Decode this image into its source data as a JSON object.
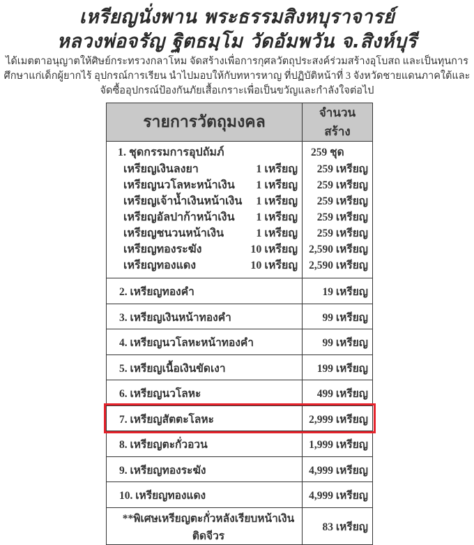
{
  "title_line1": "เหรียญนั่งพาน  พระธรรมสิงหบุราจารย์",
  "title_line2": "หลวงพ่อจรัญ  ฐิตธมฺโม  วัดอัมพวัน  จ.สิงห์บุรี",
  "intro": "ได้เมตตาอนุญาตให้ศิษย์กระทรวงกลาโหม จัดสร้างเพื่อการกุศลวัตถุประสงค์ร่วมสร้างอุโบสถ และเป็นทุนการศึกษาแก่เด็กผู้ยากไร้ อุปกรณ์การเรียน นำไปมอบให้กับทหารหาญ ที่ปฏิบัติหน้าที่ 3 จังหวัดชายแดนภาคใต้และจัดซื้ออุปกรณ์ป้องกันภัยเสื้อเกราะเพื่อเป็นขวัญและกำลังใจต่อไป",
  "table": {
    "headers": [
      "รายการวัตถุมงคล",
      "จำนวนสร้าง"
    ],
    "set": {
      "label": "1. ชุดกรรมการอุปถัมภ์",
      "quantity": "259 ชุด",
      "items": [
        {
          "name": "เหรียญเงินลงยา",
          "per_set": "1 เหรียญ",
          "quantity": "259 เหรียญ"
        },
        {
          "name": "เหรียญนวโลหะหน้าเงิน",
          "per_set": "1 เหรียญ",
          "quantity": "259 เหรียญ"
        },
        {
          "name": "เหรียญเจ้าน้ำเงินหน้าเงิน",
          "per_set": "1 เหรียญ",
          "quantity": "259 เหรียญ"
        },
        {
          "name": "เหรียญอัลปาก้าหน้าเงิน",
          "per_set": "1 เหรียญ",
          "quantity": "259 เหรียญ"
        },
        {
          "name": "เหรียญชนวนหน้าเงิน",
          "per_set": "1 เหรียญ",
          "quantity": "259 เหรียญ"
        },
        {
          "name": "เหรียญทองระฆัง",
          "per_set": "10 เหรียญ",
          "quantity": "2,590 เหรียญ"
        },
        {
          "name": "เหรียญทองแดง",
          "per_set": "10 เหรียญ",
          "quantity": "2,590 เหรียญ"
        }
      ]
    },
    "rows": [
      {
        "name": "2. เหรียญทองคำ",
        "quantity": "19 เหรียญ"
      },
      {
        "name": "3. เหรียญเงินหน้าทองคำ",
        "quantity": "99 เหรียญ"
      },
      {
        "name": "4. เหรียญนวโลหะหน้าทองคำ",
        "quantity": "99 เหรียญ"
      },
      {
        "name": "5. เหรียญเนื้อเงินขัดเงา",
        "quantity": "199 เหรียญ"
      },
      {
        "name": "6. เหรียญนวโลหะ",
        "quantity": "499 เหรียญ"
      },
      {
        "name": "7. เหรียญสัตตะโลหะ",
        "quantity": "2,999 เหรียญ"
      },
      {
        "name": "8. เหรียญตะกั่วอวน",
        "quantity": "1,999 เหรียญ"
      },
      {
        "name": "9. เหรียญทองระฆัง",
        "quantity": "4,999 เหรียญ"
      },
      {
        "name": "10. เหรียญทองแดง",
        "quantity": "4,999 เหรียญ"
      }
    ],
    "note": {
      "name": "**พิเศษเหรียญตะกั่วหลังเรียบหน้าเงินติดจีวร",
      "quantity": "83 เหรียญ"
    }
  },
  "highlight_color": "#e5222b"
}
